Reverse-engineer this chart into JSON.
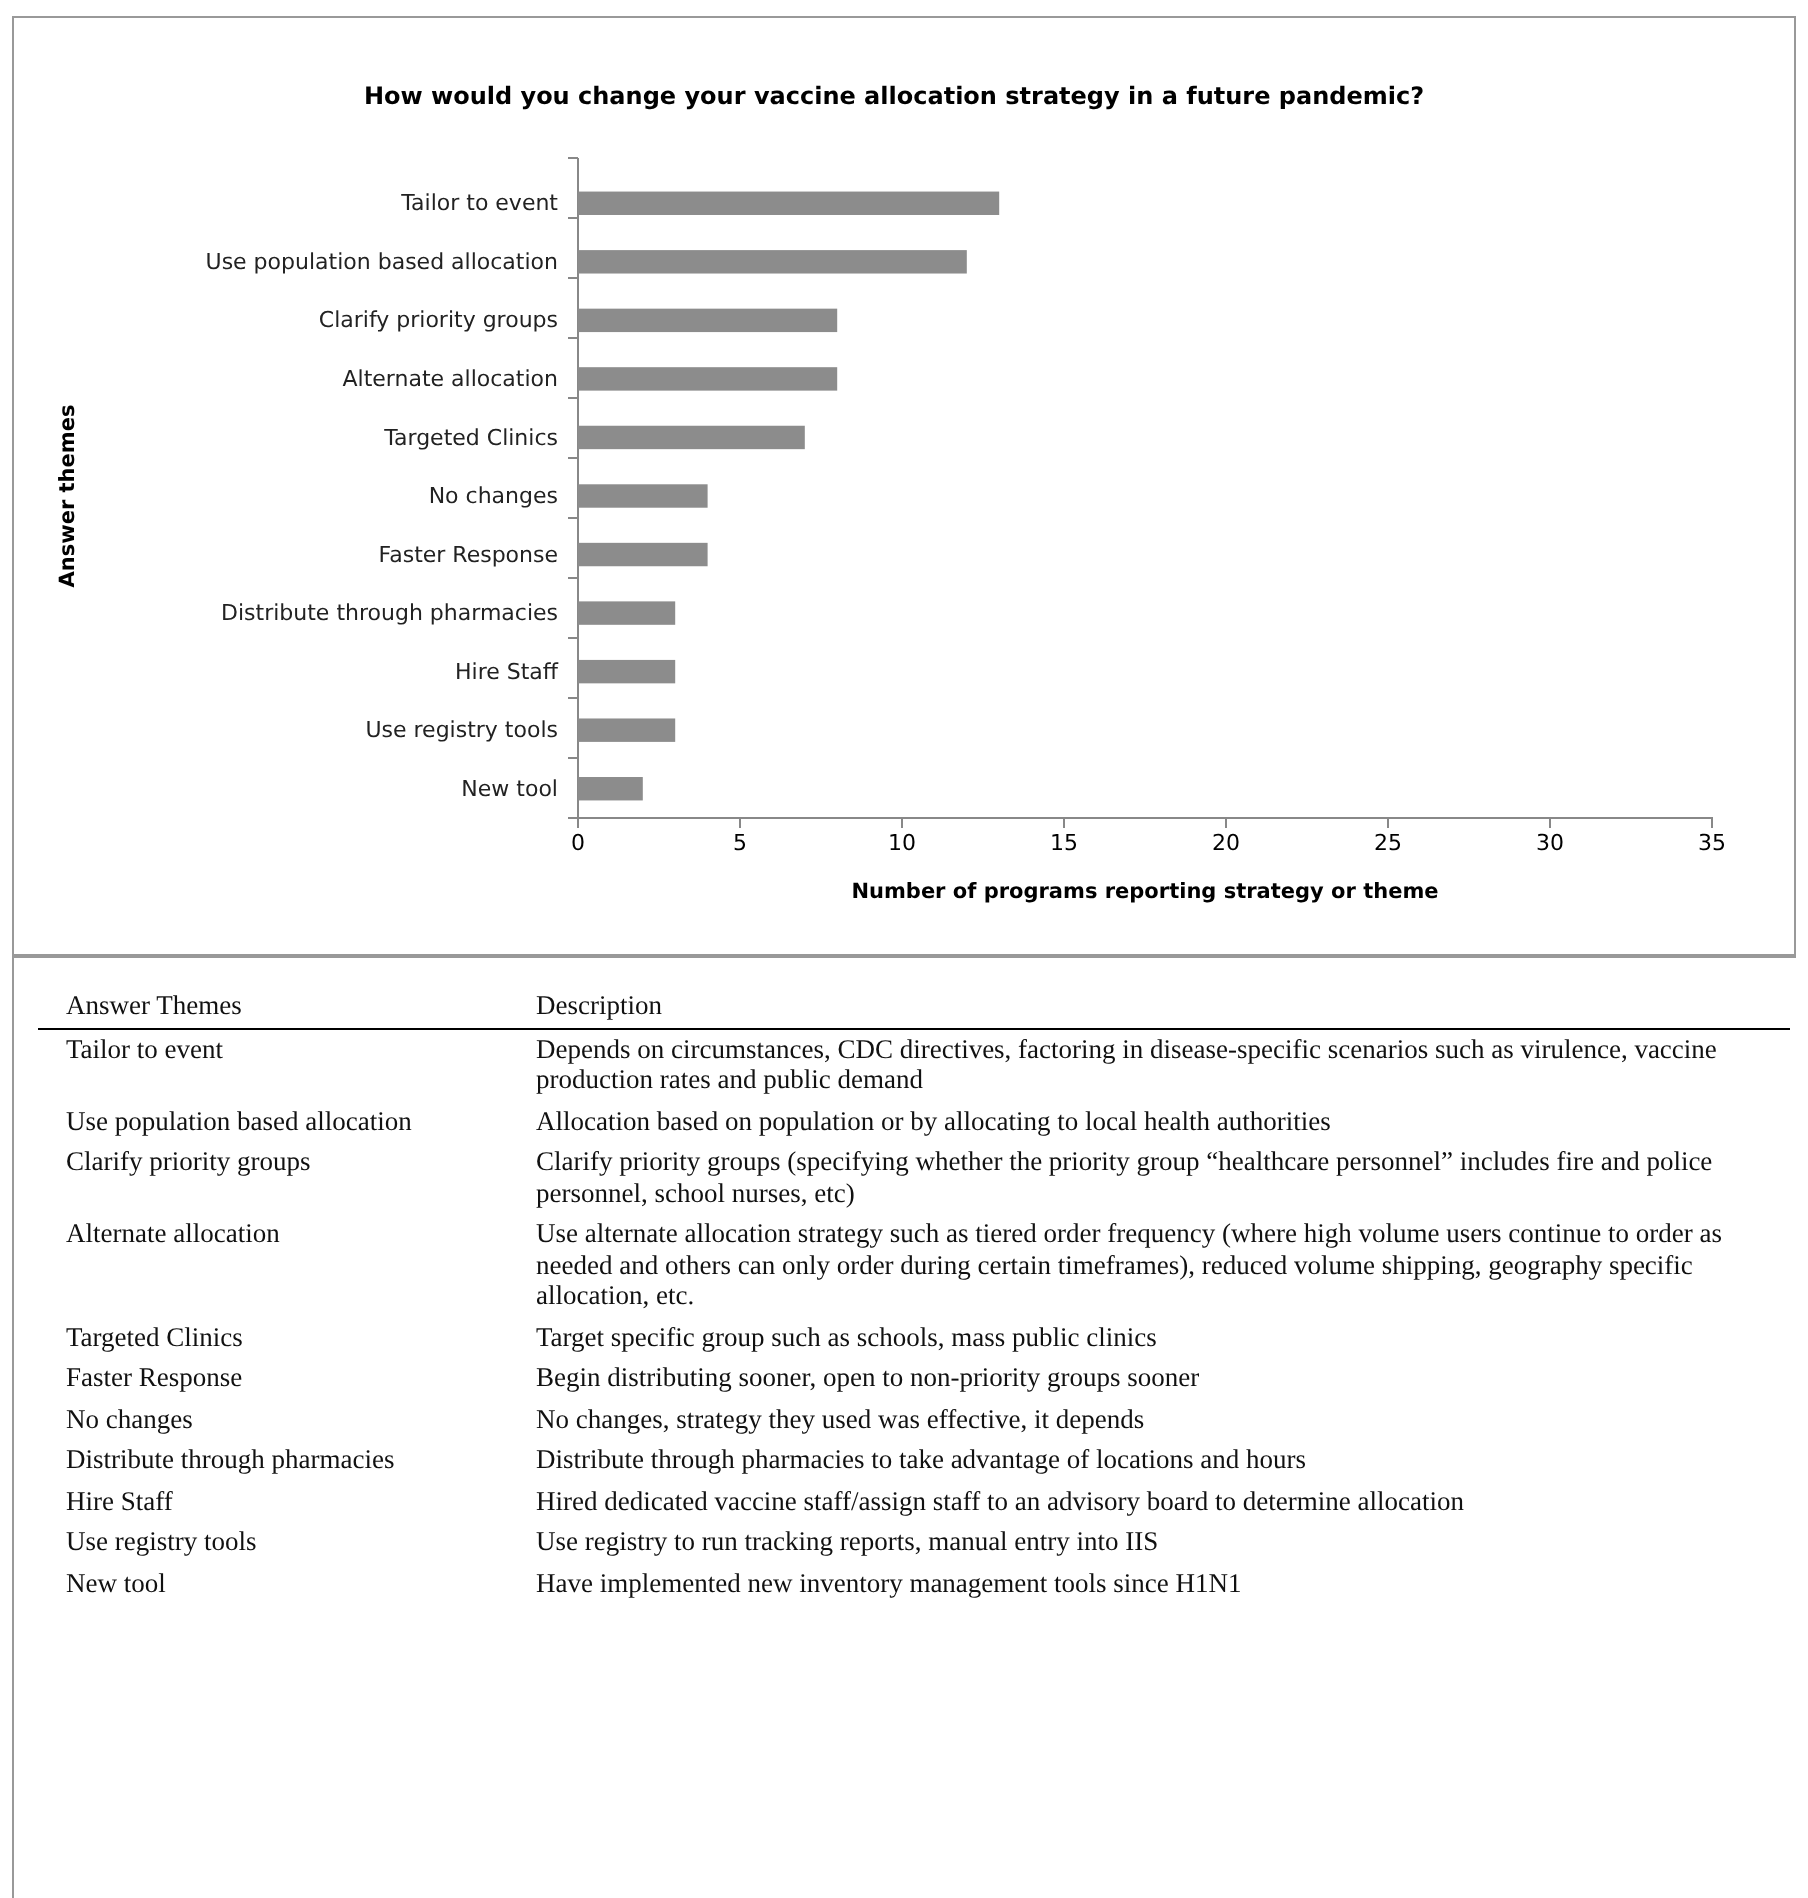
{
  "chart_data": [
    {
      "type": "bar",
      "orientation": "horizontal",
      "title": "How would you change your vaccine allocation strategy in a future pandemic?",
      "xlabel": "Number of programs reporting strategy or theme",
      "ylabel": "Answer themes",
      "categories": [
        "Tailor to event",
        "Use population based allocation",
        "Clarify priority groups",
        "Alternate allocation",
        "Targeted Clinics",
        "No changes",
        "Faster Response",
        "Distribute through pharmacies",
        "Hire Staff",
        "Use registry tools",
        "New tool"
      ],
      "values": [
        13,
        12,
        8,
        8,
        7,
        4,
        4,
        3,
        3,
        3,
        2
      ],
      "color": "#8c8c8c",
      "xlim": [
        0,
        35
      ],
      "xticks": [
        0,
        5,
        10,
        15,
        20,
        25,
        30,
        35
      ],
      "grid": false
    },
    {
      "type": "other",
      "annotations": [
        "Answer Themes",
        "Description",
        "Tailor to event",
        "Depends on circumstances, CDC directives, factoring in disease-specific scenarios such as virulence, vaccine production rates and public demand",
        "Use population based allocation",
        "Allocation based on population or by allocating to local health authorities",
        "Clarify priority groups",
        "Clarify priority groups (specifying whether the priority group “healthcare personnel” includes fire and police personnel, school nurses, etc)",
        "Alternate allocation",
        "Use alternate allocation strategy such as tiered order frequency (where high volume users continue to order as needed and others can only order during certain timeframes), reduced volume shipping, geography specific allocation, etc.",
        "Targeted Clinics",
        "Target specific group such as schools, mass public clinics",
        "Faster Response",
        "Begin distributing sooner, open to non-priority groups sooner",
        "No changes",
        "No changes, strategy they used was effective, it depends",
        "Distribute through pharmacies",
        "Distribute through pharmacies to take advantage of locations and hours",
        "Hire Staff",
        "Hired dedicated vaccine staff/assign staff to an advisory  board to determine allocation",
        "Use registry tools",
        "Use registry to run tracking reports, manual entry into IIS",
        "New tool",
        "Have implemented new inventory management tools since H1N1"
      ]
    }
  ]
}
